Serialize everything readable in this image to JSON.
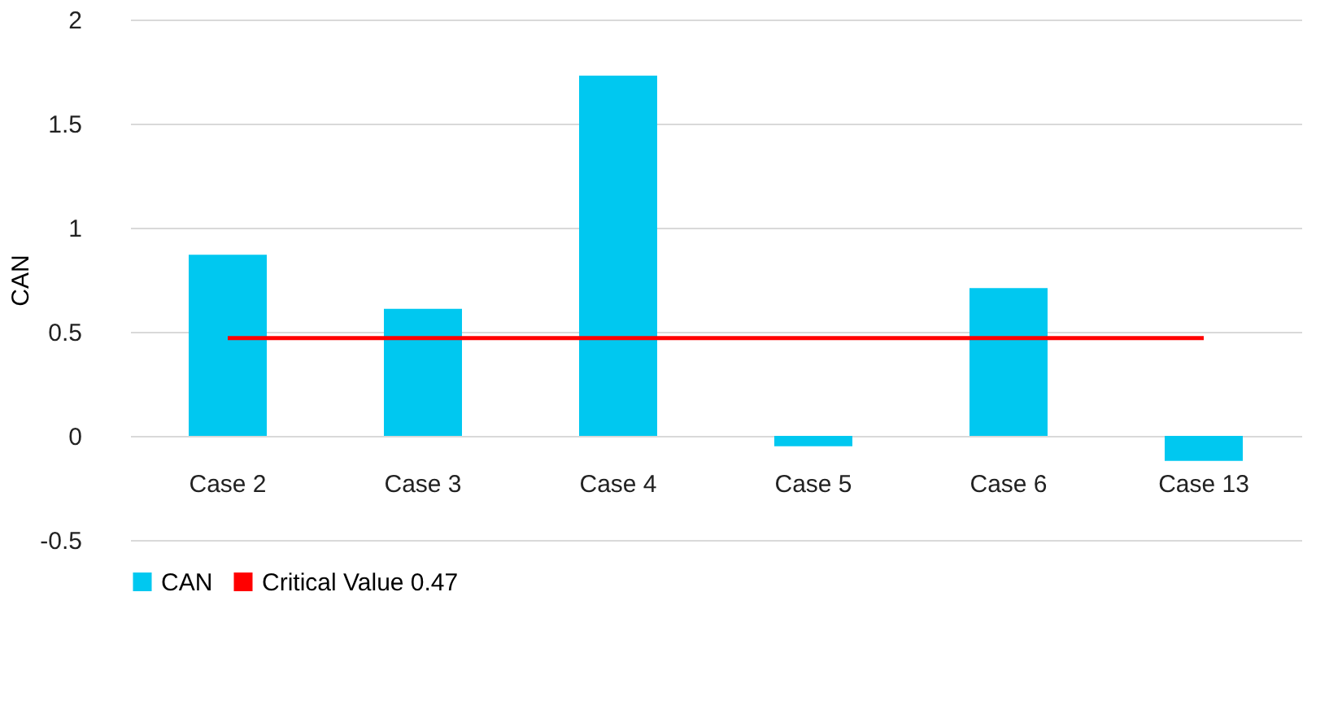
{
  "chart_data": {
    "type": "bar",
    "ylabel": "CAN",
    "categories": [
      "Case 2",
      "Case 3",
      "Case 4",
      "Case 5",
      "Case 6",
      "Case 13"
    ],
    "series": [
      {
        "name": "CAN",
        "color": "#00c8f0",
        "values": [
          0.87,
          0.61,
          1.73,
          -0.05,
          0.71,
          -0.12
        ]
      },
      {
        "name": "Critical Value 0.47",
        "type": "line",
        "color": "#ff0000",
        "values": [
          0.47,
          0.47,
          0.47,
          0.47,
          0.47,
          0.47
        ]
      }
    ],
    "ylim": [
      -0.5,
      2
    ],
    "yticks": [
      -0.5,
      0,
      0.5,
      1,
      1.5,
      2
    ],
    "grid": "y",
    "legend": "bottom"
  }
}
